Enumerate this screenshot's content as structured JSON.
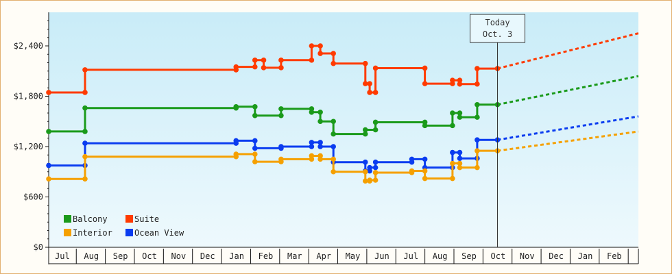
{
  "chart_data": {
    "type": "line",
    "title": "",
    "xlabel": "",
    "ylabel": "",
    "ylim": [
      0,
      2800
    ],
    "yticks": [
      0,
      600,
      1200,
      1800,
      2400
    ],
    "ytick_labels": [
      "$0",
      "$600",
      "$1,200",
      "$1,800",
      "$2,400"
    ],
    "x_months": [
      "Jul",
      "Aug",
      "Sep",
      "Oct",
      "Nov",
      "Dec",
      "Jan",
      "Feb",
      "Mar",
      "Apr",
      "May",
      "Jun",
      "Jul",
      "Aug",
      "Sep",
      "Oct",
      "Nov",
      "Dec",
      "Jan",
      "Feb"
    ],
    "x_range_months": [
      -0.45,
      19.85
    ],
    "today_label": [
      "Today",
      "Oct. 3"
    ],
    "today_x": 15.0,
    "background_gradient": [
      "#c9ecf8",
      "#eef9fd"
    ],
    "series": [
      {
        "name": "Suite",
        "color": "#ff3a00",
        "points": [
          [
            -0.45,
            1845
          ],
          [
            0.8,
            1845
          ],
          [
            0.8,
            2115
          ],
          [
            6.0,
            2115
          ],
          [
            6.0,
            2150
          ],
          [
            6.65,
            2150
          ],
          [
            6.65,
            2230
          ],
          [
            6.95,
            2230
          ],
          [
            6.95,
            2140
          ],
          [
            7.55,
            2140
          ],
          [
            7.55,
            2230
          ],
          [
            8.6,
            2230
          ],
          [
            8.6,
            2400
          ],
          [
            8.9,
            2400
          ],
          [
            8.9,
            2310
          ],
          [
            9.35,
            2310
          ],
          [
            9.35,
            2190
          ],
          [
            10.45,
            2190
          ],
          [
            10.45,
            1950
          ],
          [
            10.6,
            1950
          ],
          [
            10.6,
            1845
          ],
          [
            10.8,
            1845
          ],
          [
            10.8,
            2135
          ],
          [
            12.5,
            2135
          ],
          [
            12.5,
            1950
          ],
          [
            13.45,
            1950
          ],
          [
            13.45,
            1990
          ],
          [
            13.7,
            1990
          ],
          [
            13.7,
            1945
          ],
          [
            14.3,
            1945
          ],
          [
            14.3,
            2130
          ],
          [
            15.0,
            2130
          ]
        ],
        "forecast": [
          [
            15.0,
            2130
          ],
          [
            19.85,
            2550
          ]
        ],
        "markers": [
          [
            -0.45,
            1845
          ],
          [
            0.8,
            1845
          ],
          [
            0.8,
            2115
          ],
          [
            6.0,
            2115
          ],
          [
            6.0,
            2150
          ],
          [
            6.65,
            2150
          ],
          [
            6.65,
            2230
          ],
          [
            6.95,
            2230
          ],
          [
            6.95,
            2140
          ],
          [
            7.55,
            2140
          ],
          [
            7.55,
            2230
          ],
          [
            8.6,
            2230
          ],
          [
            8.6,
            2400
          ],
          [
            8.9,
            2400
          ],
          [
            8.9,
            2310
          ],
          [
            9.35,
            2310
          ],
          [
            9.35,
            2190
          ],
          [
            10.45,
            2190
          ],
          [
            10.45,
            1950
          ],
          [
            10.6,
            1950
          ],
          [
            10.6,
            1845
          ],
          [
            10.8,
            1845
          ],
          [
            10.8,
            2135
          ],
          [
            12.5,
            2135
          ],
          [
            12.5,
            1950
          ],
          [
            13.45,
            1950
          ],
          [
            13.45,
            1990
          ],
          [
            13.7,
            1990
          ],
          [
            13.7,
            1945
          ],
          [
            14.3,
            1945
          ],
          [
            14.3,
            2130
          ],
          [
            15.0,
            2130
          ]
        ]
      },
      {
        "name": "Balcony",
        "color": "#1a9a1a",
        "points": [
          [
            -0.45,
            1380
          ],
          [
            0.8,
            1380
          ],
          [
            0.8,
            1660
          ],
          [
            6.0,
            1660
          ],
          [
            6.0,
            1675
          ],
          [
            6.65,
            1675
          ],
          [
            6.65,
            1570
          ],
          [
            7.55,
            1570
          ],
          [
            7.55,
            1650
          ],
          [
            8.6,
            1650
          ],
          [
            8.6,
            1610
          ],
          [
            8.9,
            1610
          ],
          [
            8.9,
            1500
          ],
          [
            9.35,
            1500
          ],
          [
            9.35,
            1350
          ],
          [
            10.45,
            1350
          ],
          [
            10.45,
            1400
          ],
          [
            10.8,
            1400
          ],
          [
            10.8,
            1490
          ],
          [
            12.5,
            1490
          ],
          [
            12.5,
            1450
          ],
          [
            13.45,
            1450
          ],
          [
            13.45,
            1600
          ],
          [
            13.7,
            1600
          ],
          [
            13.7,
            1550
          ],
          [
            14.3,
            1550
          ],
          [
            14.3,
            1700
          ],
          [
            15.0,
            1700
          ]
        ],
        "forecast": [
          [
            15.0,
            1700
          ],
          [
            19.85,
            2040
          ]
        ],
        "markers": [
          [
            -0.45,
            1380
          ],
          [
            0.8,
            1380
          ],
          [
            0.8,
            1660
          ],
          [
            6.0,
            1660
          ],
          [
            6.0,
            1675
          ],
          [
            6.65,
            1675
          ],
          [
            6.65,
            1570
          ],
          [
            7.55,
            1570
          ],
          [
            7.55,
            1650
          ],
          [
            8.6,
            1650
          ],
          [
            8.6,
            1610
          ],
          [
            8.9,
            1610
          ],
          [
            8.9,
            1500
          ],
          [
            9.35,
            1500
          ],
          [
            9.35,
            1350
          ],
          [
            10.45,
            1350
          ],
          [
            10.45,
            1400
          ],
          [
            10.8,
            1400
          ],
          [
            10.8,
            1490
          ],
          [
            12.5,
            1490
          ],
          [
            12.5,
            1450
          ],
          [
            13.45,
            1450
          ],
          [
            13.45,
            1600
          ],
          [
            13.7,
            1600
          ],
          [
            13.7,
            1550
          ],
          [
            14.3,
            1550
          ],
          [
            14.3,
            1700
          ],
          [
            15.0,
            1700
          ]
        ]
      },
      {
        "name": "Ocean View",
        "color": "#0a3cf0",
        "points": [
          [
            -0.45,
            975
          ],
          [
            0.8,
            975
          ],
          [
            0.8,
            1240
          ],
          [
            6.0,
            1240
          ],
          [
            6.0,
            1270
          ],
          [
            6.65,
            1270
          ],
          [
            6.65,
            1180
          ],
          [
            7.55,
            1180
          ],
          [
            7.55,
            1200
          ],
          [
            8.6,
            1200
          ],
          [
            8.6,
            1250
          ],
          [
            8.9,
            1250
          ],
          [
            8.9,
            1200
          ],
          [
            9.35,
            1200
          ],
          [
            9.35,
            1015
          ],
          [
            10.45,
            1015
          ],
          [
            10.45,
            910
          ],
          [
            10.6,
            910
          ],
          [
            10.6,
            950
          ],
          [
            10.8,
            950
          ],
          [
            10.8,
            1015
          ],
          [
            12.05,
            1015
          ],
          [
            12.05,
            1050
          ],
          [
            12.5,
            1050
          ],
          [
            12.5,
            950
          ],
          [
            13.45,
            950
          ],
          [
            13.45,
            1130
          ],
          [
            13.7,
            1130
          ],
          [
            13.7,
            1060
          ],
          [
            14.3,
            1060
          ],
          [
            14.3,
            1280
          ],
          [
            15.0,
            1280
          ]
        ],
        "forecast": [
          [
            15.0,
            1280
          ],
          [
            19.85,
            1560
          ]
        ],
        "markers": [
          [
            -0.45,
            975
          ],
          [
            0.8,
            975
          ],
          [
            0.8,
            1240
          ],
          [
            6.0,
            1240
          ],
          [
            6.0,
            1270
          ],
          [
            6.65,
            1270
          ],
          [
            6.65,
            1180
          ],
          [
            7.55,
            1180
          ],
          [
            7.55,
            1200
          ],
          [
            8.6,
            1200
          ],
          [
            8.6,
            1250
          ],
          [
            8.9,
            1250
          ],
          [
            8.9,
            1200
          ],
          [
            9.35,
            1200
          ],
          [
            9.35,
            1015
          ],
          [
            10.45,
            1015
          ],
          [
            10.45,
            910
          ],
          [
            10.6,
            910
          ],
          [
            10.6,
            950
          ],
          [
            10.8,
            950
          ],
          [
            10.8,
            1015
          ],
          [
            12.05,
            1015
          ],
          [
            12.05,
            1050
          ],
          [
            12.5,
            1050
          ],
          [
            12.5,
            950
          ],
          [
            13.45,
            950
          ],
          [
            13.45,
            1130
          ],
          [
            13.7,
            1130
          ],
          [
            13.7,
            1060
          ],
          [
            14.3,
            1060
          ],
          [
            14.3,
            1280
          ],
          [
            15.0,
            1280
          ]
        ]
      },
      {
        "name": "Interior",
        "color": "#f5a000",
        "points": [
          [
            -0.45,
            815
          ],
          [
            0.8,
            815
          ],
          [
            0.8,
            1080
          ],
          [
            6.0,
            1080
          ],
          [
            6.0,
            1110
          ],
          [
            6.65,
            1110
          ],
          [
            6.65,
            1020
          ],
          [
            7.55,
            1020
          ],
          [
            7.55,
            1050
          ],
          [
            8.6,
            1050
          ],
          [
            8.6,
            1090
          ],
          [
            8.9,
            1090
          ],
          [
            8.9,
            1050
          ],
          [
            9.35,
            1050
          ],
          [
            9.35,
            900
          ],
          [
            10.45,
            900
          ],
          [
            10.45,
            790
          ],
          [
            10.6,
            790
          ],
          [
            10.6,
            800
          ],
          [
            10.8,
            800
          ],
          [
            10.8,
            890
          ],
          [
            12.05,
            890
          ],
          [
            12.05,
            910
          ],
          [
            12.5,
            910
          ],
          [
            12.5,
            820
          ],
          [
            13.45,
            820
          ],
          [
            13.45,
            1000
          ],
          [
            13.7,
            1000
          ],
          [
            13.7,
            950
          ],
          [
            14.3,
            950
          ],
          [
            14.3,
            1150
          ],
          [
            15.0,
            1150
          ]
        ],
        "forecast": [
          [
            15.0,
            1150
          ],
          [
            19.85,
            1380
          ]
        ],
        "markers": [
          [
            -0.45,
            815
          ],
          [
            0.8,
            815
          ],
          [
            0.8,
            1080
          ],
          [
            6.0,
            1080
          ],
          [
            6.0,
            1110
          ],
          [
            6.65,
            1110
          ],
          [
            6.65,
            1020
          ],
          [
            7.55,
            1020
          ],
          [
            7.55,
            1050
          ],
          [
            8.6,
            1050
          ],
          [
            8.6,
            1090
          ],
          [
            8.9,
            1090
          ],
          [
            8.9,
            1050
          ],
          [
            9.35,
            1050
          ],
          [
            9.35,
            900
          ],
          [
            10.45,
            900
          ],
          [
            10.45,
            790
          ],
          [
            10.6,
            790
          ],
          [
            10.6,
            800
          ],
          [
            10.8,
            800
          ],
          [
            10.8,
            890
          ],
          [
            12.05,
            890
          ],
          [
            12.05,
            910
          ],
          [
            12.5,
            910
          ],
          [
            12.5,
            820
          ],
          [
            13.45,
            820
          ],
          [
            13.45,
            1000
          ],
          [
            13.7,
            1000
          ],
          [
            13.7,
            950
          ],
          [
            14.3,
            950
          ],
          [
            14.3,
            1150
          ],
          [
            15.0,
            1150
          ]
        ]
      }
    ],
    "legend": {
      "placement": "bottom-left",
      "entries": [
        {
          "name": "Balcony",
          "color": "#1a9a1a"
        },
        {
          "name": "Suite",
          "color": "#ff3a00"
        },
        {
          "name": "Interior",
          "color": "#f5a000"
        },
        {
          "name": "Ocean View",
          "color": "#0a3cf0"
        }
      ]
    }
  }
}
